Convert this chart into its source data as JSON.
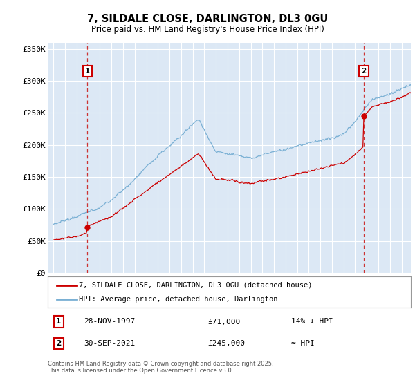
{
  "title1": "7, SILDALE CLOSE, DARLINGTON, DL3 0GU",
  "title2": "Price paid vs. HM Land Registry's House Price Index (HPI)",
  "plot_bg_color": "#dce8f5",
  "ylim": [
    0,
    360000
  ],
  "yticks": [
    0,
    50000,
    100000,
    150000,
    200000,
    250000,
    300000,
    350000
  ],
  "ytick_labels": [
    "£0",
    "£50K",
    "£100K",
    "£150K",
    "£200K",
    "£250K",
    "£300K",
    "£350K"
  ],
  "hpi_color": "#7ab0d4",
  "price_color": "#cc0000",
  "t1": 1997.917,
  "t2": 2021.75,
  "price1": 71000,
  "price2": 245000,
  "marker1_date_str": "28-NOV-1997",
  "marker1_price_str": "£71,000",
  "marker1_note": "14% ↓ HPI",
  "marker2_date_str": "30-SEP-2021",
  "marker2_price_str": "£245,000",
  "marker2_note": "≈ HPI",
  "legend_line1": "7, SILDALE CLOSE, DARLINGTON, DL3 0GU (detached house)",
  "legend_line2": "HPI: Average price, detached house, Darlington",
  "footer": "Contains HM Land Registry data © Crown copyright and database right 2025.\nThis data is licensed under the Open Government Licence v3.0.",
  "xlim_left": 1994.5,
  "xlim_right": 2025.8
}
